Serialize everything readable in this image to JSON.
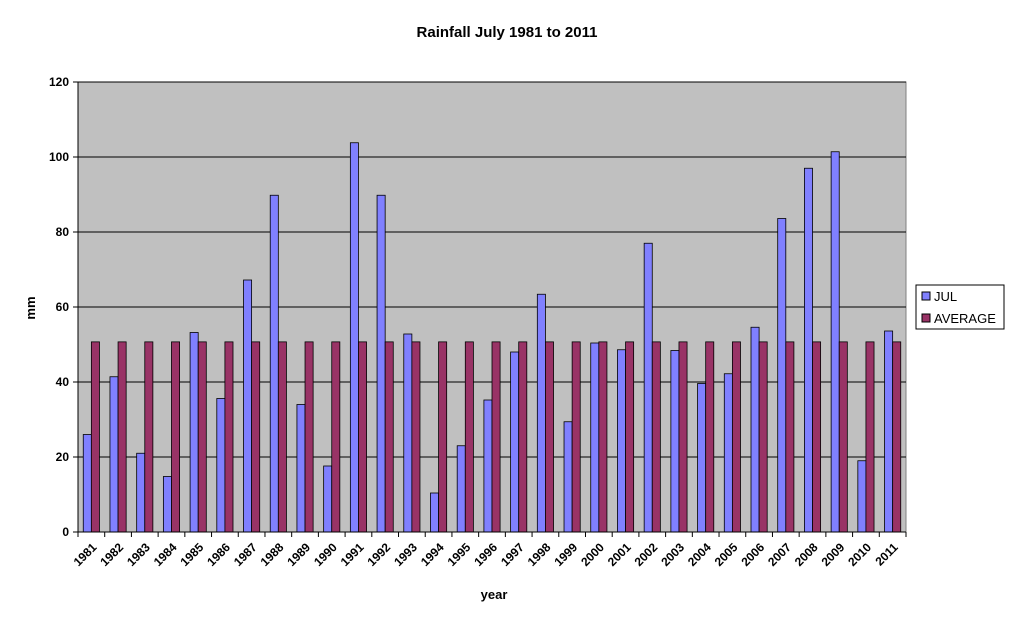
{
  "chart_data": {
    "type": "bar",
    "title": "Rainfall July 1981 to 2011",
    "xlabel": "year",
    "ylabel": "mm",
    "ylim": [
      0,
      120
    ],
    "yticks": [
      "0",
      "20",
      "40",
      "60",
      "80",
      "100",
      "120"
    ],
    "categories": [
      "1981",
      "1982",
      "1983",
      "1984",
      "1985",
      "1986",
      "1987",
      "1988",
      "1989",
      "1990",
      "1991",
      "1992",
      "1993",
      "1994",
      "1995",
      "1996",
      "1997",
      "1998",
      "1999",
      "2000",
      "2001",
      "2002",
      "2003",
      "2004",
      "2005",
      "2006",
      "2007",
      "2008",
      "2009",
      "2010",
      "2011"
    ],
    "series": [
      {
        "name": "JUL",
        "color": "#8080ff",
        "values": [
          26,
          41.4,
          21,
          14.8,
          53.2,
          35.6,
          67.2,
          89.8,
          34,
          17.6,
          103.8,
          89.8,
          52.8,
          10.4,
          23,
          35.2,
          48,
          63.4,
          29.4,
          50.4,
          48.6,
          77,
          48.4,
          39.6,
          42.2,
          54.6,
          83.6,
          97,
          101.4,
          19,
          53.6
        ]
      },
      {
        "name": "AVERAGE",
        "color": "#993366",
        "values": [
          50.7,
          50.7,
          50.7,
          50.7,
          50.7,
          50.7,
          50.7,
          50.7,
          50.7,
          50.7,
          50.7,
          50.7,
          50.7,
          50.7,
          50.7,
          50.7,
          50.7,
          50.7,
          50.7,
          50.7,
          50.7,
          50.7,
          50.7,
          50.7,
          50.7,
          50.7,
          50.7,
          50.7,
          50.7,
          50.7,
          50.7
        ]
      }
    ],
    "plot_background": "#c0c0c0",
    "grid": true,
    "legend_position": "right"
  }
}
